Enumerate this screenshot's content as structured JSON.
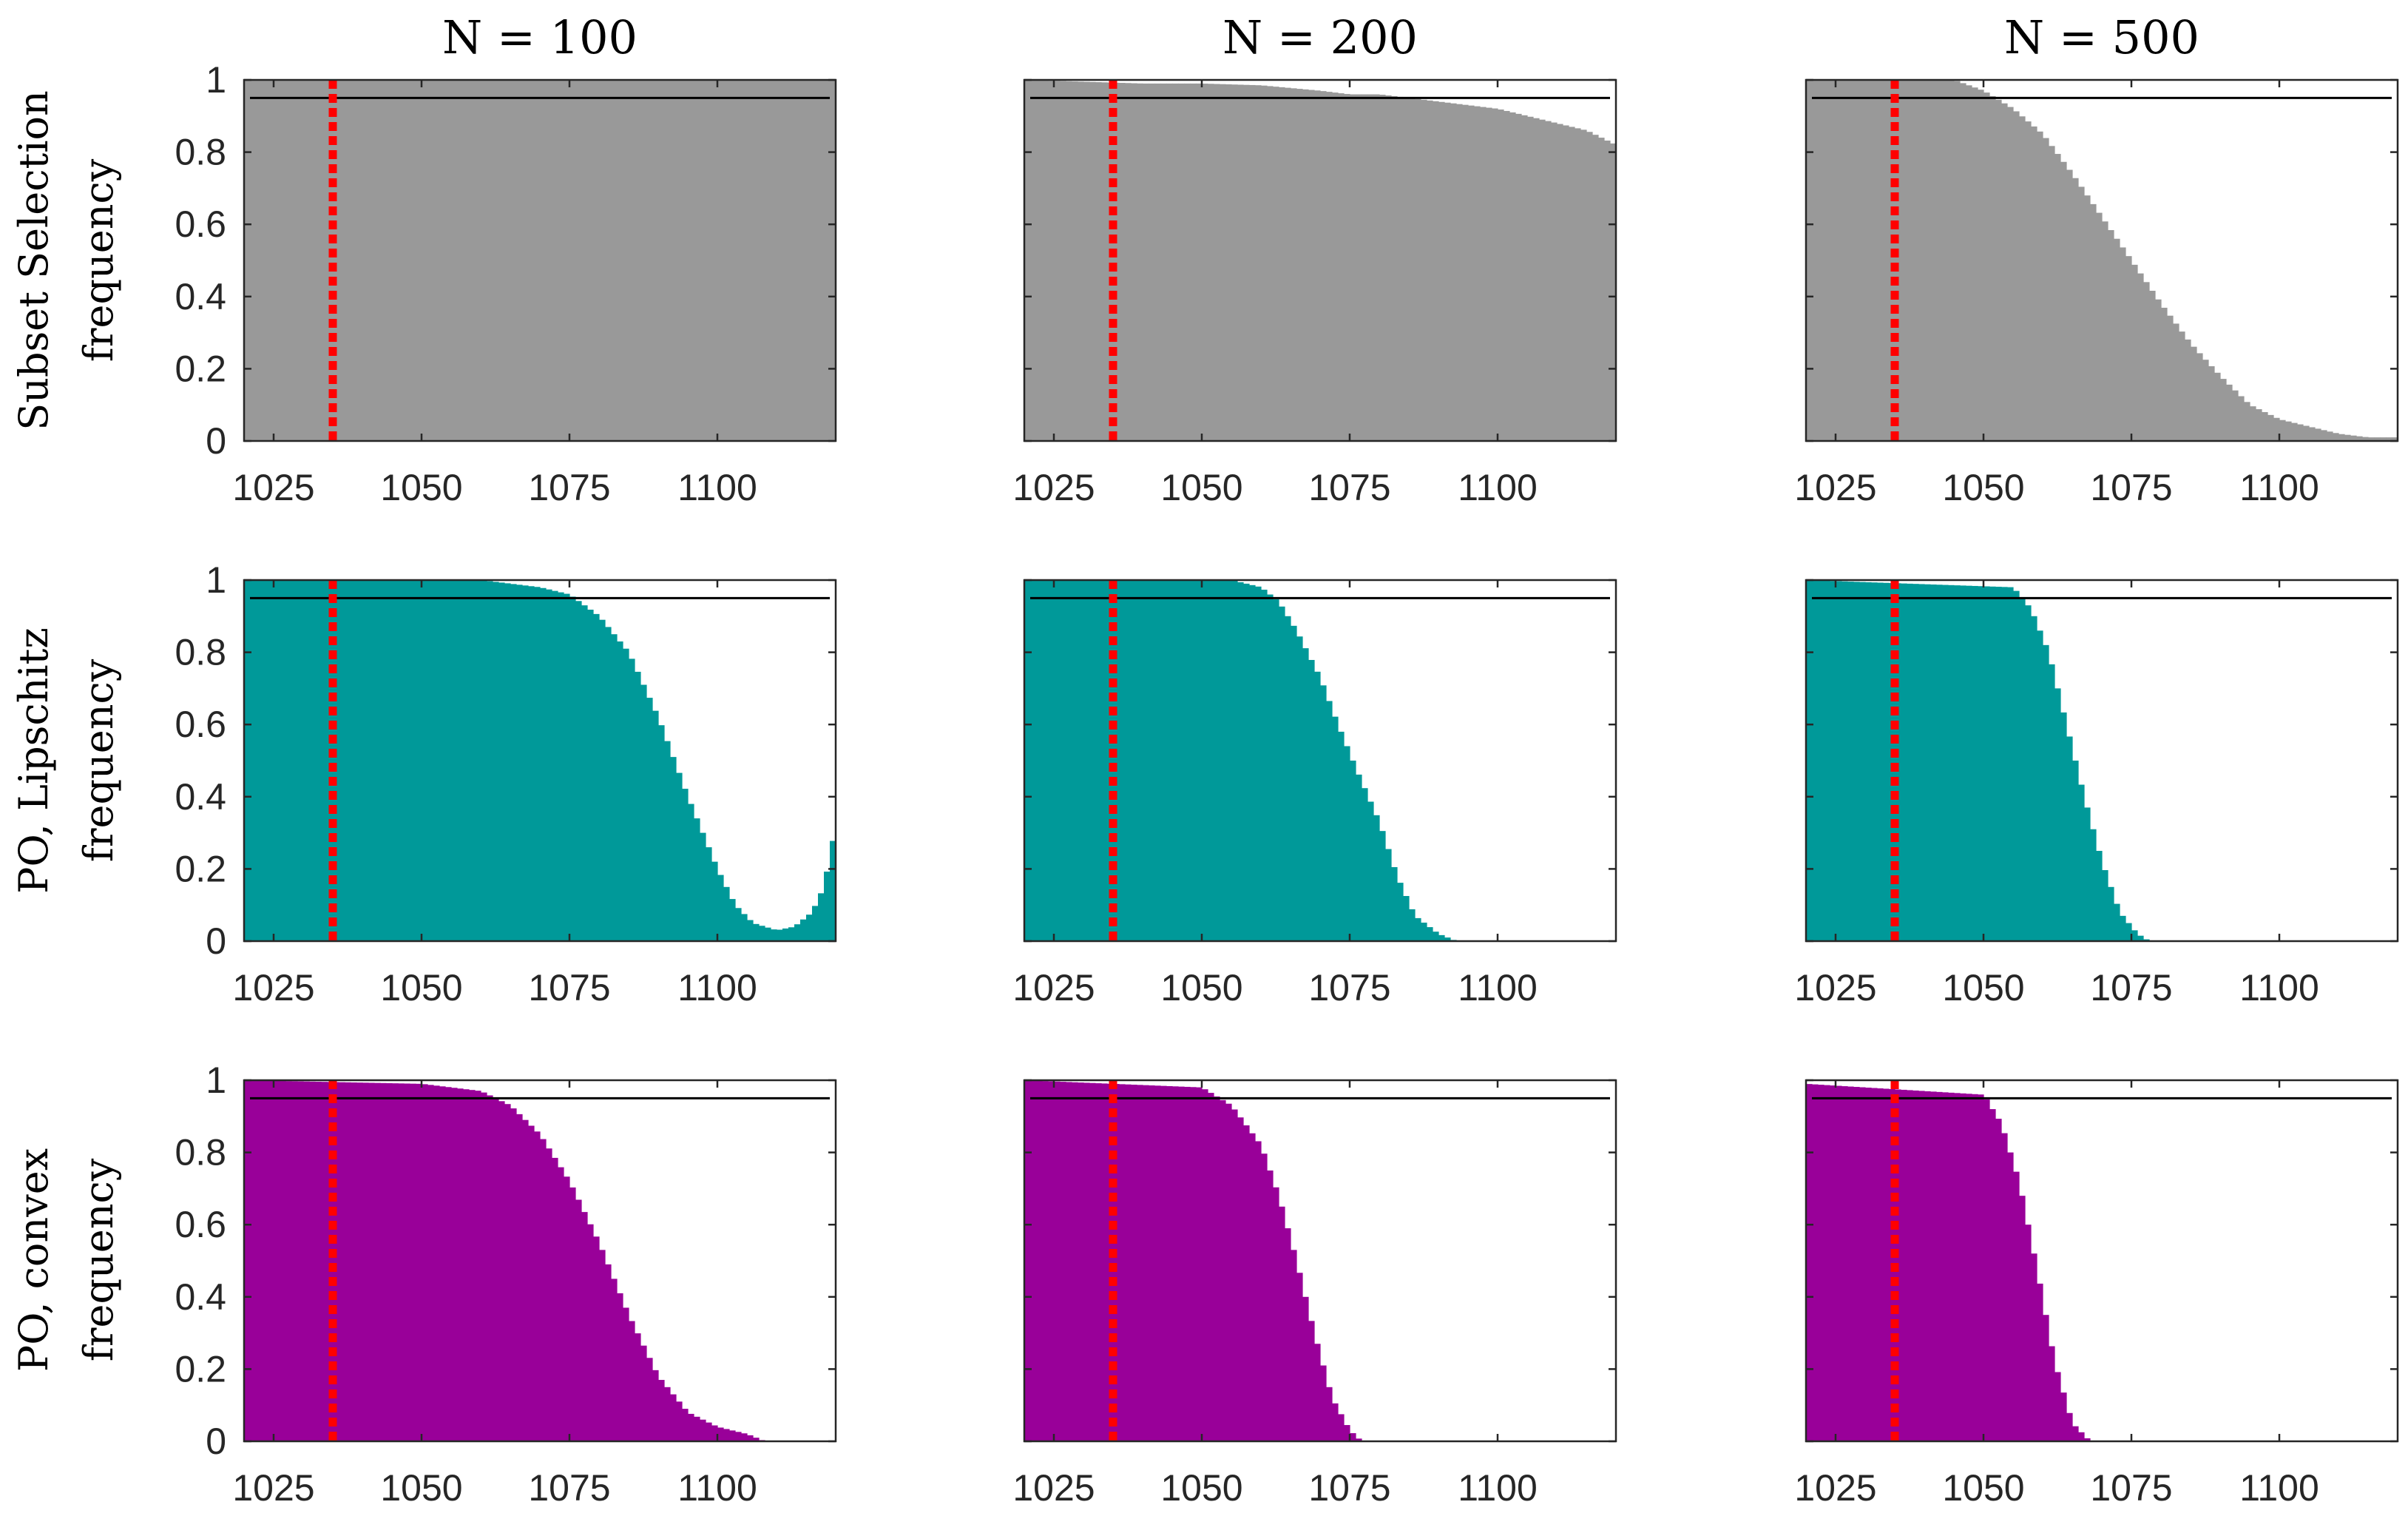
{
  "column_titles": [
    "N = 100",
    "N = 200",
    "N = 500"
  ],
  "row_labels": [
    "Subset Selection",
    "PO, Lipschitz",
    "PO, convex"
  ],
  "ylabel": "frequency",
  "colors": {
    "subset_selection": "#999999",
    "po_lipschitz": "#009999",
    "po_convex": "#990099",
    "reference_line": "#000000",
    "marker_line": "#ff0000"
  },
  "chart_data": [
    {
      "type": "bar",
      "row": "Subset Selection",
      "column": "N = 100",
      "color": "#999999",
      "xlim": [
        1020,
        1120
      ],
      "ylim": [
        0,
        1
      ],
      "xticks": [
        1025,
        1050,
        1075,
        1100
      ],
      "yticks": [
        0,
        0.2,
        0.4,
        0.6,
        0.8,
        1
      ],
      "xticklabels": [
        "1025",
        "1050",
        "1075",
        "1100"
      ],
      "yticklabels": [
        "0",
        "0.2",
        "0.4",
        "0.6",
        "0.8",
        "1"
      ],
      "hline": 0.95,
      "vline": 1035,
      "x": [
        1020,
        1120
      ],
      "y": [
        1.0,
        1.0
      ]
    },
    {
      "type": "bar",
      "row": "Subset Selection",
      "column": "N = 200",
      "color": "#999999",
      "xlim": [
        1020,
        1120
      ],
      "ylim": [
        0,
        1
      ],
      "xticks": [
        1025,
        1050,
        1075,
        1100
      ],
      "yticks": [
        0,
        0.2,
        0.4,
        0.6,
        0.8,
        1
      ],
      "xticklabels": [
        "1025",
        "1050",
        "1075",
        "1100"
      ],
      "yticklabels": [
        "0",
        "0.2",
        "0.4",
        "0.6",
        "0.8",
        "1"
      ],
      "hline": 0.95,
      "vline": 1035,
      "x": [
        1020,
        1030,
        1040,
        1050,
        1060,
        1070,
        1075,
        1080,
        1090,
        1100,
        1105,
        1110,
        1115,
        1120
      ],
      "y": [
        1.0,
        0.995,
        0.99,
        0.99,
        0.985,
        0.97,
        0.96,
        0.96,
        0.94,
        0.92,
        0.9,
        0.88,
        0.86,
        0.82
      ]
    },
    {
      "type": "bar",
      "row": "Subset Selection",
      "column": "N = 500",
      "color": "#999999",
      "xlim": [
        1020,
        1120
      ],
      "ylim": [
        0,
        1
      ],
      "xticks": [
        1025,
        1050,
        1075,
        1100
      ],
      "yticks": [
        0,
        0.2,
        0.4,
        0.6,
        0.8,
        1
      ],
      "xticklabels": [
        "1025",
        "1050",
        "1075",
        "1100"
      ],
      "yticklabels": [
        "0",
        "0.2",
        "0.4",
        "0.6",
        "0.8",
        "1"
      ],
      "hline": 0.95,
      "vline": 1035,
      "x": [
        1020,
        1045,
        1050,
        1055,
        1060,
        1065,
        1070,
        1075,
        1080,
        1085,
        1090,
        1095,
        1100,
        1105,
        1110,
        1115,
        1120
      ],
      "y": [
        1.0,
        1.0,
        0.97,
        0.92,
        0.85,
        0.74,
        0.62,
        0.5,
        0.38,
        0.27,
        0.18,
        0.1,
        0.06,
        0.04,
        0.02,
        0.01,
        0.01
      ]
    },
    {
      "type": "bar",
      "row": "PO, Lipschitz",
      "column": "N = 100",
      "color": "#009999",
      "xlim": [
        1020,
        1120
      ],
      "ylim": [
        0,
        1
      ],
      "xticks": [
        1025,
        1050,
        1075,
        1100
      ],
      "yticks": [
        0,
        0.2,
        0.4,
        0.6,
        0.8,
        1
      ],
      "xticklabels": [
        "1025",
        "1050",
        "1075",
        "1100"
      ],
      "yticklabels": [
        "0",
        "0.2",
        "0.4",
        "0.6",
        "0.8",
        "1"
      ],
      "hline": 0.95,
      "vline": 1035,
      "x": [
        1020,
        1060,
        1065,
        1070,
        1075,
        1080,
        1085,
        1090,
        1095,
        1100,
        1103,
        1106,
        1110,
        1113,
        1116,
        1118,
        1120
      ],
      "y": [
        1.0,
        1.0,
        0.99,
        0.98,
        0.96,
        0.9,
        0.8,
        0.62,
        0.4,
        0.2,
        0.1,
        0.05,
        0.03,
        0.04,
        0.08,
        0.15,
        0.32
      ]
    },
    {
      "type": "bar",
      "row": "PO, Lipschitz",
      "column": "N = 200",
      "color": "#009999",
      "xlim": [
        1020,
        1120
      ],
      "ylim": [
        0,
        1
      ],
      "xticks": [
        1025,
        1050,
        1075,
        1100
      ],
      "yticks": [
        0,
        0.2,
        0.4,
        0.6,
        0.8,
        1
      ],
      "xticklabels": [
        "1025",
        "1050",
        "1075",
        "1100"
      ],
      "yticklabels": [
        "0",
        "0.2",
        "0.4",
        "0.6",
        "0.8",
        "1"
      ],
      "hline": 0.95,
      "vline": 1035,
      "x": [
        1020,
        1055,
        1060,
        1063,
        1066,
        1070,
        1073,
        1076,
        1080,
        1083,
        1086,
        1090,
        1093
      ],
      "y": [
        1.0,
        1.0,
        0.98,
        0.94,
        0.86,
        0.73,
        0.6,
        0.48,
        0.33,
        0.18,
        0.07,
        0.02,
        0.0
      ]
    },
    {
      "type": "bar",
      "row": "PO, Lipschitz",
      "column": "N = 500",
      "color": "#009999",
      "xlim": [
        1020,
        1120
      ],
      "ylim": [
        0,
        1
      ],
      "xticks": [
        1025,
        1050,
        1075,
        1100
      ],
      "yticks": [
        0,
        0.2,
        0.4,
        0.6,
        0.8,
        1
      ],
      "xticklabels": [
        "1025",
        "1050",
        "1075",
        "1100"
      ],
      "yticklabels": [
        "0",
        "0.2",
        "0.4",
        "0.6",
        "0.8",
        "1"
      ],
      "hline": 0.95,
      "vline": 1035,
      "x": [
        1020,
        1055,
        1058,
        1061,
        1064,
        1067,
        1070,
        1073,
        1076,
        1078
      ],
      "y": [
        1.0,
        0.98,
        0.92,
        0.8,
        0.6,
        0.4,
        0.22,
        0.08,
        0.02,
        0.0
      ]
    },
    {
      "type": "bar",
      "row": "PO, convex",
      "column": "N = 100",
      "color": "#990099",
      "xlim": [
        1020,
        1120
      ],
      "ylim": [
        0,
        1
      ],
      "xticks": [
        1025,
        1050,
        1075,
        1100
      ],
      "yticks": [
        0,
        0.2,
        0.4,
        0.6,
        0.8,
        1
      ],
      "xticklabels": [
        "1025",
        "1050",
        "1075",
        "1100"
      ],
      "yticklabels": [
        "0",
        "0.2",
        "0.4",
        "0.6",
        "0.8",
        "1"
      ],
      "hline": 0.95,
      "vline": 1035,
      "x": [
        1020,
        1050,
        1060,
        1065,
        1070,
        1075,
        1080,
        1085,
        1090,
        1095,
        1100,
        1105,
        1108
      ],
      "y": [
        1.0,
        0.99,
        0.97,
        0.93,
        0.85,
        0.72,
        0.55,
        0.35,
        0.18,
        0.08,
        0.04,
        0.02,
        0.0
      ]
    },
    {
      "type": "bar",
      "row": "PO, convex",
      "column": "N = 200",
      "color": "#990099",
      "xlim": [
        1020,
        1120
      ],
      "ylim": [
        0,
        1
      ],
      "xticks": [
        1025,
        1050,
        1075,
        1100
      ],
      "yticks": [
        0,
        0.2,
        0.4,
        0.6,
        0.8,
        1
      ],
      "xticklabels": [
        "1025",
        "1050",
        "1075",
        "1100"
      ],
      "yticklabels": [
        "0",
        "0.2",
        "0.4",
        "0.6",
        "0.8",
        "1"
      ],
      "hline": 0.95,
      "vline": 1035,
      "x": [
        1020,
        1050,
        1055,
        1060,
        1063,
        1066,
        1069,
        1072,
        1075,
        1077
      ],
      "y": [
        1.0,
        0.98,
        0.93,
        0.82,
        0.68,
        0.5,
        0.3,
        0.12,
        0.03,
        0.0
      ]
    },
    {
      "type": "bar",
      "row": "PO, convex",
      "column": "N = 500",
      "color": "#990099",
      "xlim": [
        1020,
        1120
      ],
      "ylim": [
        0,
        1
      ],
      "xticks": [
        1025,
        1050,
        1075,
        1100
      ],
      "yticks": [
        0,
        0.2,
        0.4,
        0.6,
        0.8,
        1
      ],
      "xticklabels": [
        "1025",
        "1050",
        "1075",
        "1100"
      ],
      "yticklabels": [
        "0",
        "0.2",
        "0.4",
        "0.6",
        "0.8",
        "1"
      ],
      "hline": 0.95,
      "vline": 1035,
      "x": [
        1020,
        1050,
        1053,
        1056,
        1059,
        1062,
        1065,
        1068
      ],
      "y": [
        0.99,
        0.96,
        0.88,
        0.72,
        0.48,
        0.22,
        0.05,
        0.0
      ]
    }
  ]
}
